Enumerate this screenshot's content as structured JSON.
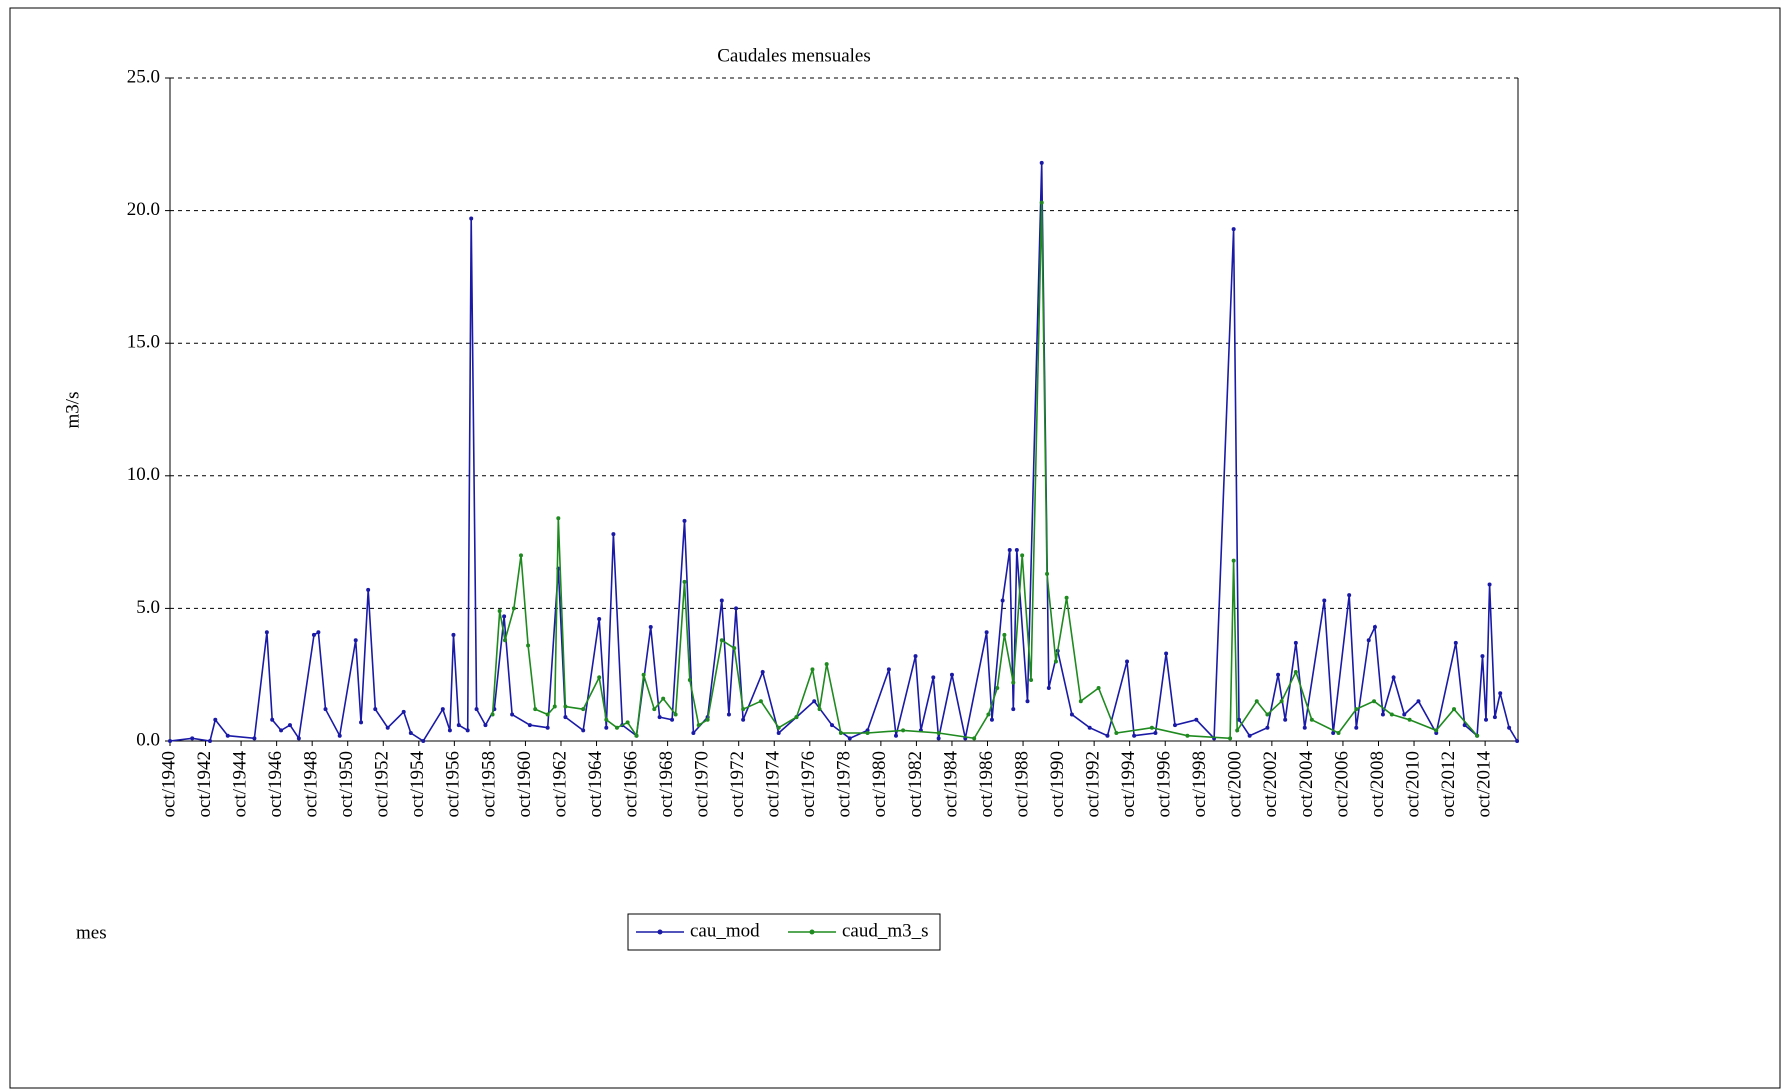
{
  "chart_data": {
    "type": "line",
    "title": "Caudales mensuales",
    "ylabel": "m3/s",
    "xlabel": "mes",
    "xlim": [
      1940.75,
      2016.6
    ],
    "ylim": [
      0,
      25
    ],
    "yticks": [
      {
        "value": 0,
        "label": "0.0"
      },
      {
        "value": 5,
        "label": "5.0"
      },
      {
        "value": 10,
        "label": "10.0"
      },
      {
        "value": 15,
        "label": "15.0"
      },
      {
        "value": 20,
        "label": "20.0"
      },
      {
        "value": 25,
        "label": "25.0"
      }
    ],
    "xticks": [
      {
        "value": 1940.75,
        "label": "oct/1940"
      },
      {
        "value": 1942.75,
        "label": "oct/1942"
      },
      {
        "value": 1944.75,
        "label": "oct/1944"
      },
      {
        "value": 1946.75,
        "label": "oct/1946"
      },
      {
        "value": 1948.75,
        "label": "oct/1948"
      },
      {
        "value": 1950.75,
        "label": "oct/1950"
      },
      {
        "value": 1952.75,
        "label": "oct/1952"
      },
      {
        "value": 1954.75,
        "label": "oct/1954"
      },
      {
        "value": 1956.75,
        "label": "oct/1956"
      },
      {
        "value": 1958.75,
        "label": "oct/1958"
      },
      {
        "value": 1960.75,
        "label": "oct/1960"
      },
      {
        "value": 1962.75,
        "label": "oct/1962"
      },
      {
        "value": 1964.75,
        "label": "oct/1964"
      },
      {
        "value": 1966.75,
        "label": "oct/1966"
      },
      {
        "value": 1968.75,
        "label": "oct/1968"
      },
      {
        "value": 1970.75,
        "label": "oct/1970"
      },
      {
        "value": 1972.75,
        "label": "oct/1972"
      },
      {
        "value": 1974.75,
        "label": "oct/1974"
      },
      {
        "value": 1976.75,
        "label": "oct/1976"
      },
      {
        "value": 1978.75,
        "label": "oct/1978"
      },
      {
        "value": 1980.75,
        "label": "oct/1980"
      },
      {
        "value": 1982.75,
        "label": "oct/1982"
      },
      {
        "value": 1984.75,
        "label": "oct/1984"
      },
      {
        "value": 1986.75,
        "label": "oct/1986"
      },
      {
        "value": 1988.75,
        "label": "oct/1988"
      },
      {
        "value": 1990.75,
        "label": "oct/1990"
      },
      {
        "value": 1992.75,
        "label": "oct/1992"
      },
      {
        "value": 1994.75,
        "label": "oct/1994"
      },
      {
        "value": 1996.75,
        "label": "oct/1996"
      },
      {
        "value": 1998.75,
        "label": "oct/1998"
      },
      {
        "value": 2000.75,
        "label": "oct/2000"
      },
      {
        "value": 2002.75,
        "label": "oct/2002"
      },
      {
        "value": 2004.75,
        "label": "oct/2004"
      },
      {
        "value": 2006.75,
        "label": "oct/2006"
      },
      {
        "value": 2008.75,
        "label": "oct/2008"
      },
      {
        "value": 2010.75,
        "label": "oct/2010"
      },
      {
        "value": 2012.75,
        "label": "oct/2012"
      },
      {
        "value": 2014.75,
        "label": "oct/2014"
      }
    ],
    "grid": true,
    "series": [
      {
        "name": "cau_mod",
        "color": "#1a1aa6",
        "x": [
          1940.75,
          1942,
          1943,
          1943.3,
          1944,
          1945.5,
          1946.2,
          1946.5,
          1947,
          1947.5,
          1948,
          1948.85,
          1949.1,
          1949.5,
          1950.3,
          1951.2,
          1951.5,
          1951.9,
          1952.3,
          1953,
          1953.9,
          1954.3,
          1955,
          1956.1,
          1956.5,
          1956.7,
          1957,
          1957.5,
          1957.7,
          1958,
          1958.5,
          1959,
          1959.55,
          1960,
          1961,
          1962,
          1962.6,
          1963,
          1964,
          1964.9,
          1965.3,
          1965.7,
          1966.2,
          1967,
          1967.8,
          1968.3,
          1969,
          1969.7,
          1970.2,
          1971,
          1971.8,
          1972.2,
          1972.6,
          1973,
          1974.1,
          1975,
          1976,
          1977,
          1978,
          1979,
          1980,
          1981.2,
          1981.6,
          1982.7,
          1983,
          1983.7,
          1984,
          1984.75,
          1985.5,
          1986.7,
          1987,
          1987.6,
          1988,
          1988.2,
          1988.4,
          1989,
          1989.8,
          1990.2,
          1990.7,
          1991.5,
          1992.5,
          1993.5,
          1994.6,
          1995,
          1996.2,
          1996.8,
          1997.3,
          1998.5,
          1999.5,
          2000.6,
          2000.9,
          2001.5,
          2002.5,
          2003.1,
          2003.5,
          2004.1,
          2004.6,
          2005.7,
          2006.2,
          2007.1,
          2007.5,
          2008.2,
          2008.55,
          2009,
          2009.6,
          2010.2,
          2011,
          2012,
          2013.1,
          2013.6,
          2014.3,
          2014.6,
          2014.8,
          2015,
          2015.3,
          2015.6,
          2016.1,
          2016.55
        ],
        "values": [
          0,
          0.1,
          0,
          0.8,
          0.2,
          0.1,
          4.1,
          0.8,
          0.4,
          0.6,
          0.1,
          4.0,
          4.1,
          1.2,
          0.2,
          3.8,
          0.7,
          5.7,
          1.2,
          0.5,
          1.1,
          0.3,
          0,
          1.2,
          0.4,
          4.0,
          0.6,
          0.4,
          19.7,
          1.2,
          0.6,
          1.2,
          4.7,
          1.0,
          0.6,
          0.5,
          6.5,
          0.9,
          0.4,
          4.6,
          0.5,
          7.8,
          0.6,
          0.2,
          4.3,
          0.9,
          0.8,
          8.3,
          0.3,
          0.9,
          5.3,
          1.0,
          5.0,
          0.8,
          2.6,
          0.3,
          0.9,
          1.5,
          0.6,
          0.1,
          0.4,
          2.7,
          0.2,
          3.2,
          0.4,
          2.4,
          0.1,
          2.5,
          0.1,
          4.1,
          0.8,
          5.3,
          7.2,
          1.2,
          7.2,
          1.5,
          21.8,
          2.0,
          3.4,
          1.0,
          0.5,
          0.2,
          3.0,
          0.2,
          0.3,
          3.3,
          0.6,
          0.8,
          0.1,
          19.3,
          0.8,
          0.2,
          0.5,
          2.5,
          0.8,
          3.7,
          0.5,
          5.3,
          0.3,
          5.5,
          0.5,
          3.8,
          4.3,
          1.0,
          2.4,
          1.0,
          1.5,
          0.3,
          3.7,
          0.6,
          0.2,
          3.2,
          0.8,
          5.9,
          0.9,
          1.8,
          0.5,
          0
        ]
      },
      {
        "name": "caud_m3_s",
        "color": "#1f8a1f",
        "x": [
          1958.9,
          1959.3,
          1959.6,
          1960.1,
          1960.5,
          1960.9,
          1961.3,
          1962,
          1962.4,
          1962.6,
          1963,
          1964,
          1964.9,
          1965.3,
          1965.9,
          1966.5,
          1967,
          1967.4,
          1968,
          1968.5,
          1969.2,
          1969.7,
          1970,
          1970.5,
          1971,
          1971.8,
          1972.5,
          1973,
          1974,
          1975,
          1976,
          1976.9,
          1977.3,
          1977.7,
          1978.5,
          1980,
          1982,
          1984,
          1986,
          1986.8,
          1987.3,
          1987.7,
          1988.2,
          1988.7,
          1989.2,
          1989.8,
          1990.1,
          1990.6,
          1991.2,
          1992,
          1993,
          1994,
          1996,
          1998,
          2000.4,
          2000.6,
          2000.8,
          2001.9,
          2002.5,
          2003.3,
          2004.1,
          2005,
          2006.5,
          2007.5,
          2008.5,
          2009.5,
          2010.5,
          2012,
          2013,
          2014.3
        ],
        "values": [
          1.0,
          4.9,
          3.8,
          5.0,
          7.0,
          3.6,
          1.2,
          1.0,
          1.3,
          8.4,
          1.3,
          1.2,
          2.4,
          0.8,
          0.5,
          0.7,
          0.2,
          2.5,
          1.2,
          1.6,
          1.0,
          6.0,
          2.3,
          0.6,
          0.8,
          3.8,
          3.5,
          1.2,
          1.5,
          0.5,
          0.9,
          2.7,
          1.2,
          2.9,
          0.3,
          0.3,
          0.4,
          0.3,
          0.1,
          1.0,
          2.0,
          4.0,
          2.2,
          7.0,
          2.3,
          20.3,
          6.3,
          3.0,
          5.4,
          1.5,
          2.0,
          0.3,
          0.5,
          0.2,
          0.1,
          6.8,
          0.4,
          1.5,
          1.0,
          1.5,
          2.6,
          0.8,
          0.3,
          1.2,
          1.5,
          1.0,
          0.8,
          0.4,
          1.2,
          0.2
        ]
      }
    ]
  }
}
